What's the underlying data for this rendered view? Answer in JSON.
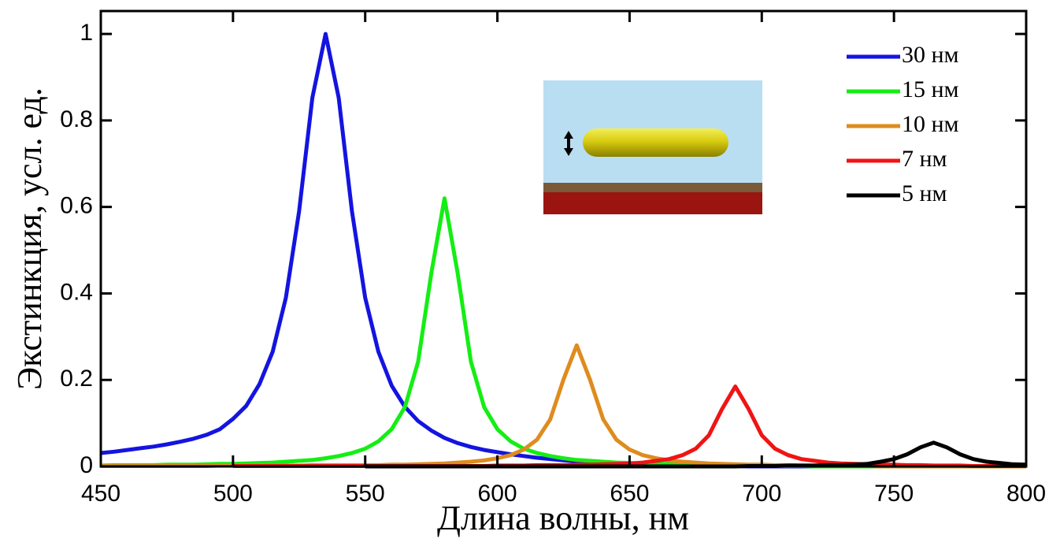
{
  "chart_data": {
    "type": "line",
    "xlabel": "Длина волны, нм",
    "ylabel": "Экстинкция, усл. ед.",
    "x": [
      450,
      455,
      460,
      465,
      470,
      475,
      480,
      485,
      490,
      495,
      500,
      505,
      510,
      515,
      520,
      525,
      530,
      535,
      540,
      545,
      550,
      555,
      560,
      565,
      570,
      575,
      580,
      585,
      590,
      595,
      600,
      605,
      610,
      615,
      620,
      625,
      630,
      635,
      640,
      645,
      650,
      655,
      660,
      665,
      670,
      675,
      680,
      685,
      690,
      695,
      700,
      705,
      710,
      715,
      720,
      725,
      730,
      735,
      740,
      745,
      750,
      755,
      760,
      765,
      770,
      775,
      780,
      785,
      790,
      795,
      800
    ],
    "xlim": [
      450,
      800
    ],
    "xticks": [
      450,
      500,
      550,
      600,
      650,
      700,
      750,
      800
    ],
    "ylim": [
      0,
      1.053
    ],
    "yticks": [
      0,
      0.2,
      0.4,
      0.6,
      0.8,
      1
    ],
    "legend": "upper right",
    "series": [
      {
        "name": "30 нм",
        "color": "#1414e0",
        "values": [
          0.031,
          0.034,
          0.038,
          0.042,
          0.046,
          0.051,
          0.057,
          0.064,
          0.073,
          0.086,
          0.11,
          0.14,
          0.19,
          0.265,
          0.39,
          0.59,
          0.852,
          1.0,
          0.852,
          0.59,
          0.39,
          0.265,
          0.187,
          0.138,
          0.105,
          0.083,
          0.066,
          0.054,
          0.045,
          0.038,
          0.033,
          0.028,
          0.024,
          0.02,
          0.017,
          0.014,
          0.012,
          0.01,
          0.008,
          0.007,
          0.006,
          0.005,
          0.004,
          0.003,
          0.002,
          0.002,
          0.001,
          0.001,
          0.001,
          0,
          0,
          0,
          0,
          0,
          0,
          0,
          0,
          0,
          0,
          0,
          0,
          0,
          0,
          0,
          0,
          0,
          0,
          0,
          0,
          0,
          0
        ]
      },
      {
        "name": "15 нм",
        "color": "#14ee14",
        "values": [
          0.002,
          0.003,
          0.003,
          0.003,
          0.003,
          0.004,
          0.004,
          0.004,
          0.005,
          0.006,
          0.006,
          0.007,
          0.008,
          0.009,
          0.011,
          0.013,
          0.015,
          0.019,
          0.024,
          0.031,
          0.041,
          0.058,
          0.086,
          0.137,
          0.242,
          0.446,
          0.62,
          0.446,
          0.242,
          0.137,
          0.086,
          0.058,
          0.041,
          0.031,
          0.024,
          0.019,
          0.015,
          0.013,
          0.011,
          0.009,
          0.008,
          0.007,
          0.006,
          0.006,
          0.005,
          0.004,
          0.004,
          0.003,
          0.003,
          0.002,
          0.002,
          0.001,
          0.001,
          0.001,
          0,
          0,
          0,
          0,
          0,
          0,
          0,
          0,
          0,
          0,
          0,
          0,
          0,
          0,
          0,
          0,
          0
        ]
      },
      {
        "name": "10 нм",
        "color": "#de8c1e",
        "values": [
          0.001,
          0.001,
          0.001,
          0.001,
          0.001,
          0.001,
          0.001,
          0.001,
          0.001,
          0.002,
          0.002,
          0.002,
          0.002,
          0.002,
          0.002,
          0.002,
          0.003,
          0.003,
          0.003,
          0.003,
          0.003,
          0.003,
          0.004,
          0.004,
          0.005,
          0.006,
          0.007,
          0.009,
          0.011,
          0.014,
          0.019,
          0.026,
          0.039,
          0.062,
          0.109,
          0.201,
          0.28,
          0.201,
          0.109,
          0.062,
          0.039,
          0.026,
          0.019,
          0.014,
          0.011,
          0.009,
          0.007,
          0.006,
          0.005,
          0.004,
          0.004,
          0.003,
          0.003,
          0.002,
          0.002,
          0.001,
          0.001,
          0.001,
          0.001,
          0,
          0,
          0,
          0,
          0,
          0,
          0,
          0,
          0,
          0,
          0,
          0
        ]
      },
      {
        "name": "7 нм",
        "color": "#f01414",
        "values": [
          null,
          null,
          null,
          null,
          null,
          null,
          null,
          null,
          null,
          null,
          0.001,
          0.001,
          0.001,
          0.001,
          0.001,
          0.001,
          0.001,
          0.001,
          0.001,
          0.001,
          0.001,
          0.001,
          0.001,
          0.001,
          0.001,
          0.001,
          0.001,
          0.001,
          0.001,
          0.001,
          0.002,
          0.002,
          0.002,
          0.003,
          0.003,
          0.003,
          0.004,
          0.004,
          0.005,
          0.006,
          0.007,
          0.009,
          0.013,
          0.017,
          0.026,
          0.041,
          0.072,
          0.133,
          0.185,
          0.133,
          0.072,
          0.041,
          0.026,
          0.017,
          0.013,
          0.009,
          0.007,
          0.006,
          0.005,
          0.004,
          0.004,
          0.003,
          0.003,
          0.002,
          0.002,
          0.002,
          0.001,
          0.001,
          0.001,
          0.001,
          0.001
        ]
      },
      {
        "name": "5 нм",
        "color": "#000000",
        "values": [
          null,
          null,
          null,
          null,
          null,
          null,
          null,
          null,
          null,
          null,
          null,
          null,
          null,
          null,
          null,
          null,
          null,
          null,
          null,
          null,
          0,
          0,
          0,
          0,
          0,
          0,
          0,
          0,
          0,
          0,
          0,
          0,
          0,
          0,
          0,
          0,
          0,
          0,
          0,
          0,
          0,
          0,
          0,
          0,
          0,
          0,
          0,
          0,
          0,
          0.001,
          0.001,
          0.001,
          0.002,
          0.002,
          0.002,
          0.003,
          0.003,
          0.004,
          0.006,
          0.011,
          0.017,
          0.028,
          0.044,
          0.055,
          0.044,
          0.028,
          0.017,
          0.011,
          0.008,
          0.005,
          0.004
        ]
      }
    ]
  }
}
